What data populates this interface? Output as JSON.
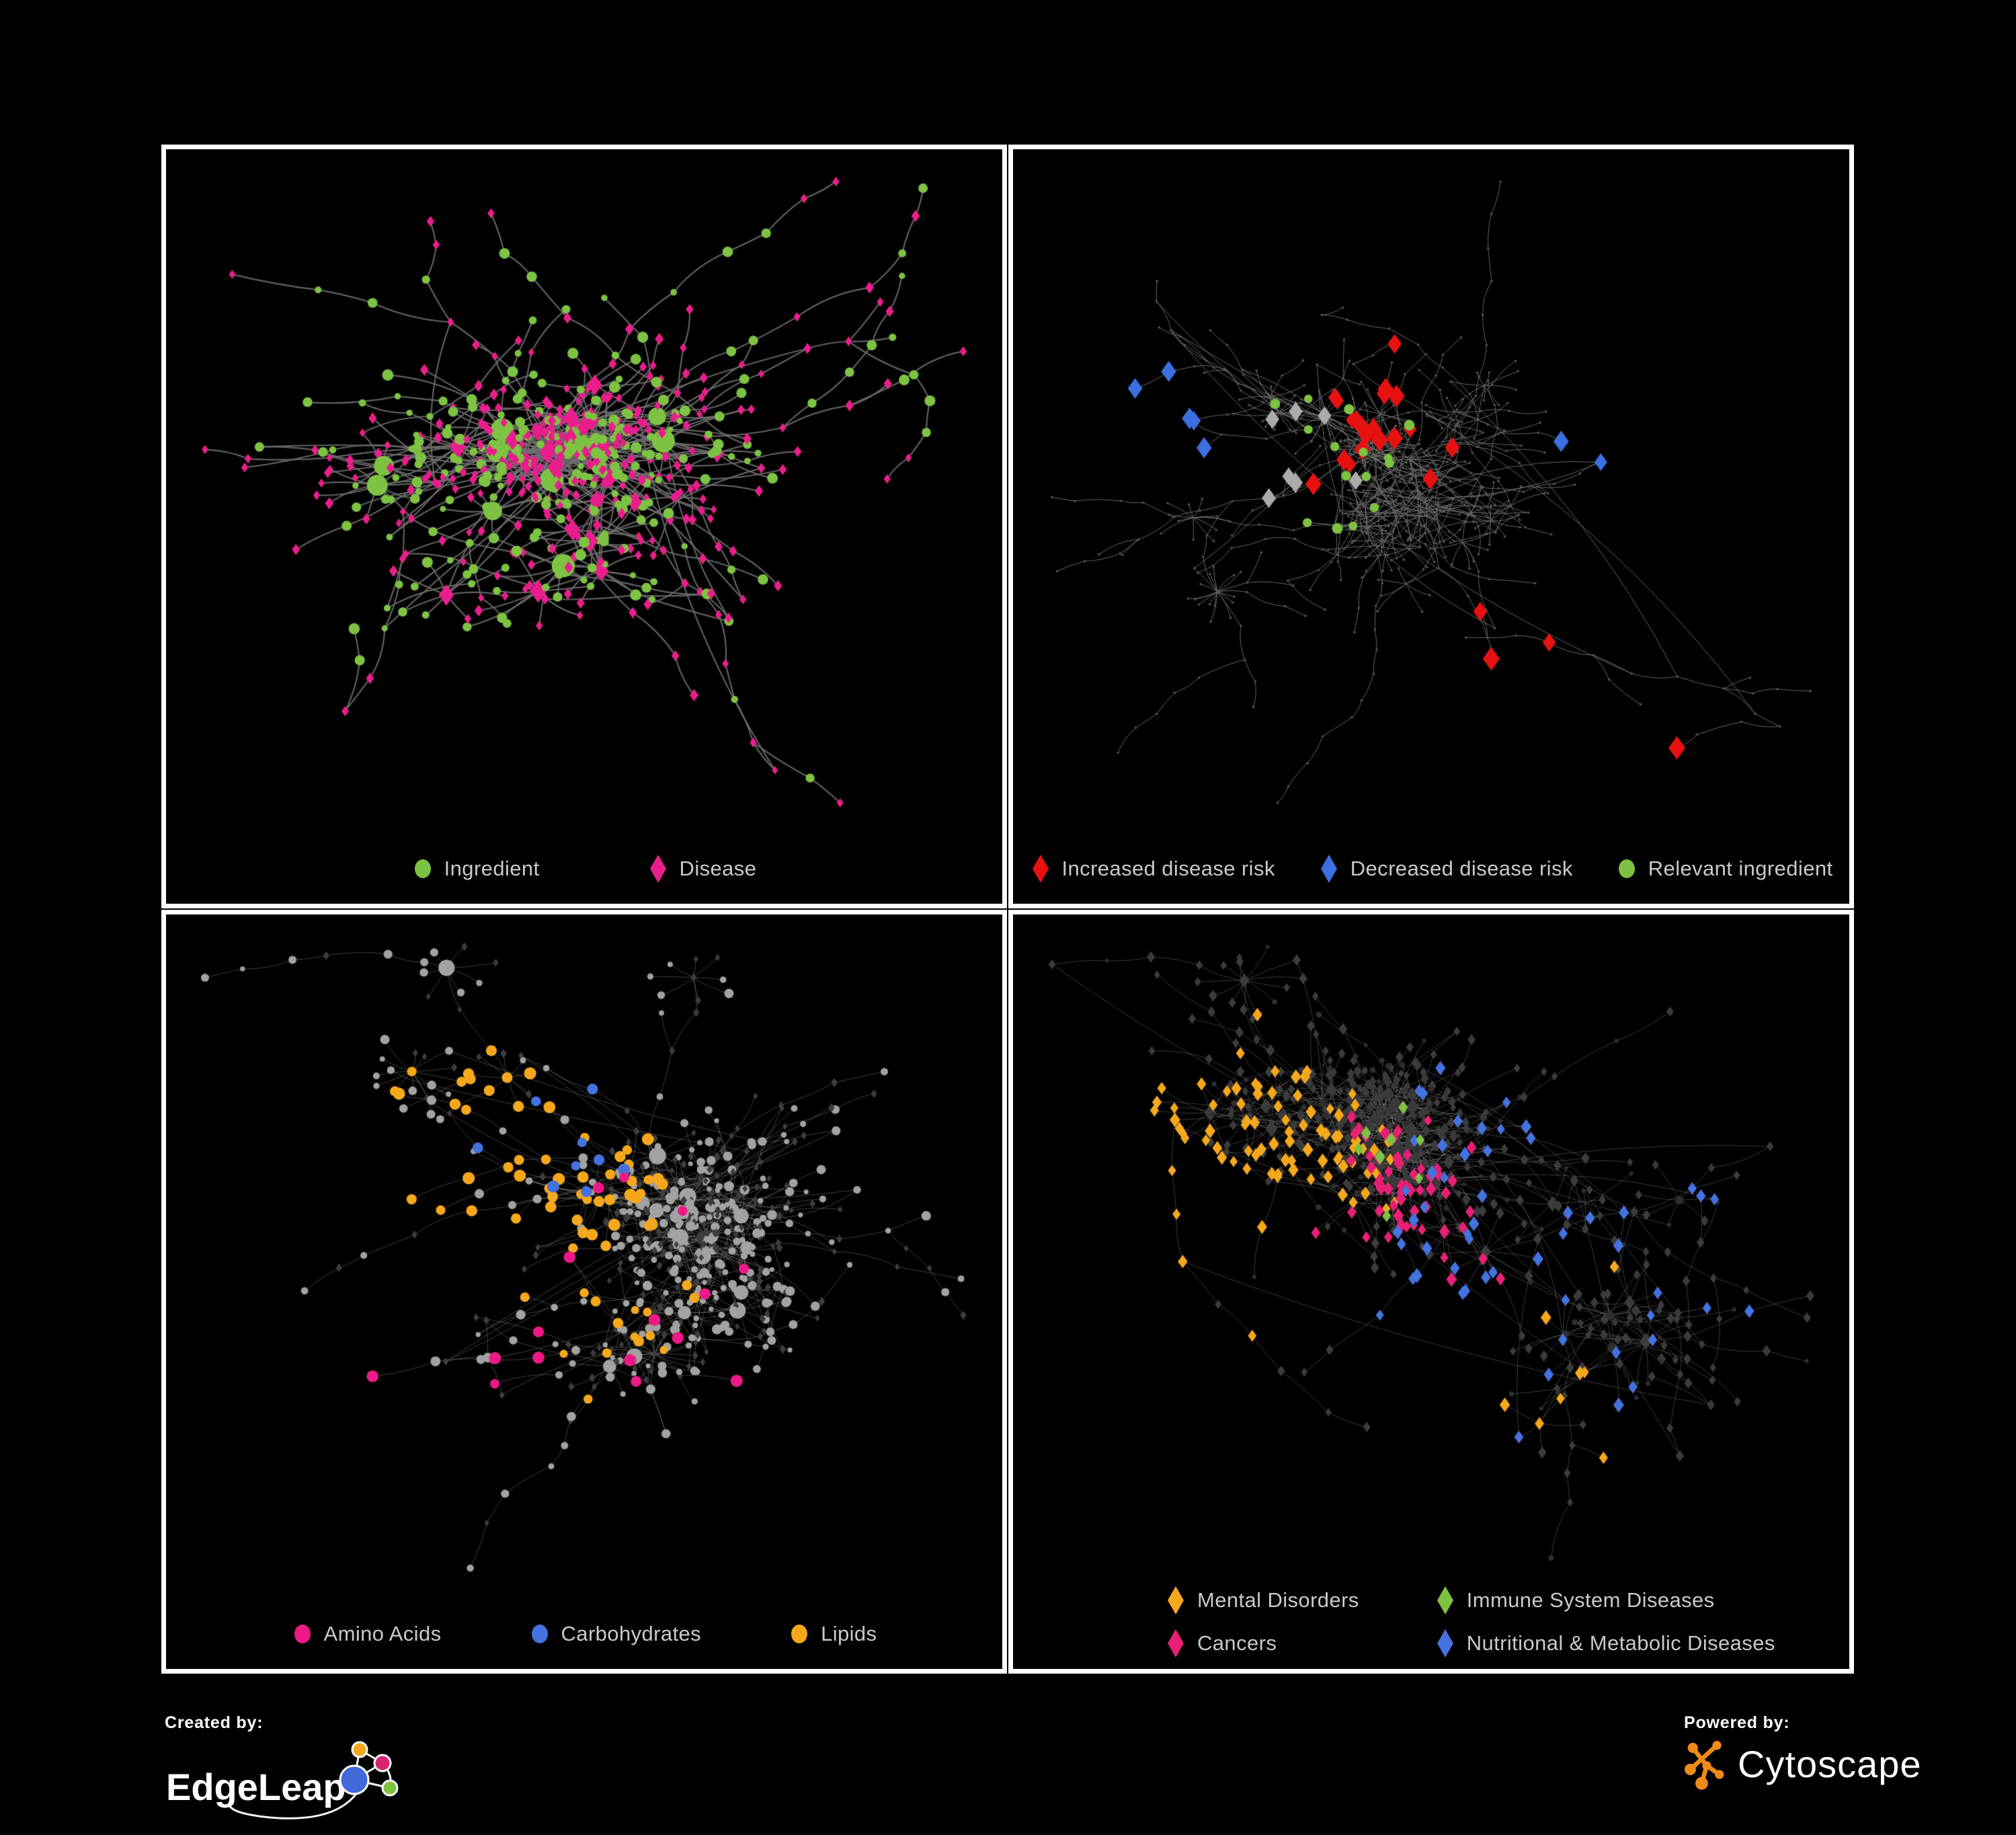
{
  "page": {
    "background": "#000000",
    "panel_border": "#ffffff"
  },
  "panels": [
    {
      "id": "ingredient-disease",
      "position": "top-left",
      "legend": [
        {
          "label": "Ingredient",
          "shape": "circle",
          "color": "#7DC242"
        },
        {
          "label": "Disease",
          "shape": "diamond",
          "color": "#E91E8C"
        }
      ],
      "network": {
        "seed": 11,
        "nodes": 620,
        "burst_prob": 0.1,
        "chain_prob": 0.55,
        "extra_edges": 22,
        "edge": {
          "color": "#6E6E6E",
          "width": 2.2,
          "alpha": 0.88,
          "curve": 0.14
        },
        "base": {
          "style": "ingredient-disease",
          "circle_color": "#7DC242",
          "diamond_color": "#E91E8C",
          "circle_prob": 0.45,
          "circle_r": [
            4.5,
            8.5
          ],
          "diamond_r": [
            4.5,
            6.5
          ],
          "hub_extra": 9
        },
        "highlights": []
      }
    },
    {
      "id": "disease-risk",
      "position": "top-right",
      "legend": [
        {
          "label": "Increased disease risk",
          "shape": "diamond",
          "color": "#E81111"
        },
        {
          "label": "Decreased disease risk",
          "shape": "diamond",
          "color": "#3D6FE0"
        },
        {
          "label": "Relevant ingredient",
          "shape": "circle",
          "color": "#7DC242"
        }
      ],
      "network": {
        "seed": 23,
        "nodes": 680,
        "burst_prob": 0.09,
        "chain_prob": 0.62,
        "extra_edges": 28,
        "edge": {
          "color": "#7F7F7F",
          "width": 1.0,
          "alpha": 0.8,
          "curve": 0.16
        },
        "base": {
          "style": "dots",
          "dot_color": "#555555",
          "dot_r": 1.8
        },
        "highlights": [
          {
            "shape": "diamond",
            "color": "#E81111",
            "size": 11,
            "count": 20,
            "focus": [
              0.42,
              0.33
            ],
            "spread": 0.5
          },
          {
            "shape": "diamond",
            "color": "#E81111",
            "size": 11,
            "count": 4,
            "focus": [
              0.62,
              0.74
            ],
            "spread": 0.22
          },
          {
            "shape": "diamond",
            "color": "#3D6FE0",
            "size": 11,
            "count": 5,
            "focus": [
              0.2,
              0.36
            ],
            "spread": 0.12
          },
          {
            "shape": "diamond",
            "color": "#3D6FE0",
            "size": 11,
            "count": 2,
            "focus": [
              0.87,
              0.26
            ],
            "spread": 0.04
          },
          {
            "shape": "diamond",
            "color": "#ABABAB",
            "size": 10,
            "count": 7,
            "focus": [
              0.33,
              0.42
            ],
            "spread": 0.42
          },
          {
            "shape": "circle",
            "color": "#7DC242",
            "size": 7,
            "count": 15,
            "focus": [
              0.38,
              0.38
            ],
            "spread": 0.6
          }
        ]
      }
    },
    {
      "id": "nutrient-classes",
      "position": "bottom-left",
      "legend": [
        {
          "label": "Amino Acids",
          "shape": "circle",
          "color": "#ED1A86"
        },
        {
          "label": "Carbohydrates",
          "shape": "circle",
          "color": "#4472DE"
        },
        {
          "label": "Lipids",
          "shape": "circle",
          "color": "#F5A81C"
        }
      ],
      "network": {
        "seed": 37,
        "nodes": 650,
        "burst_prob": 0.11,
        "chain_prob": 0.52,
        "extra_edges": 40,
        "edge": {
          "color": "#9C9C9C",
          "width": 0.9,
          "alpha": 0.45,
          "curve": 0.12
        },
        "base": {
          "style": "grey-mix",
          "circle_color": "#A2A2A2",
          "diamond_color": "#3D3D3D",
          "circle_prob": 0.52,
          "circle_r": [
            3.5,
            7.5
          ],
          "diamond_r": [
            3.5,
            5
          ],
          "hub_extra": 6
        },
        "highlights": [
          {
            "shape": "circle",
            "color": "#F5A81C",
            "size": 8,
            "count": 55,
            "focus": [
              0.42,
              0.32
            ],
            "spread": 0.2
          },
          {
            "shape": "circle",
            "color": "#F5A81C",
            "size": 7,
            "count": 14,
            "focus": [
              0.45,
              0.6
            ],
            "spread": 1.4
          },
          {
            "shape": "circle",
            "color": "#4472DE",
            "size": 8,
            "count": 9,
            "focus": [
              0.46,
              0.27
            ],
            "spread": 0.12
          },
          {
            "shape": "circle",
            "color": "#ED1A86",
            "size": 8,
            "count": 16,
            "focus": [
              0.4,
              0.6
            ],
            "spread": 1.6
          }
        ]
      }
    },
    {
      "id": "disease-classes",
      "position": "bottom-right",
      "legend": [
        {
          "label": "Mental Disorders",
          "shape": "diamond",
          "color": "#F5A81C"
        },
        {
          "label": "Immune System Diseases",
          "shape": "diamond",
          "color": "#7DC242"
        },
        {
          "label": "Cancers",
          "shape": "diamond",
          "color": "#E82074"
        },
        {
          "label": "Nutritional & Metabolic Diseases",
          "shape": "diamond",
          "color": "#4472DE"
        }
      ],
      "network": {
        "seed": 53,
        "nodes": 720,
        "burst_prob": 0.12,
        "chain_prob": 0.5,
        "extra_edges": 45,
        "edge": {
          "color": "#ABABAB",
          "width": 0.9,
          "alpha": 0.38,
          "curve": 0.12
        },
        "base": {
          "style": "dark-mix",
          "diamond_color": "#3B3B3B",
          "circle_color": "#2E2E2E",
          "diamond_prob": 0.8,
          "diamond_r": [
            4.5,
            6.5
          ],
          "circle_r": [
            2.5,
            4.5
          ],
          "hub_extra": 3
        },
        "highlights": [
          {
            "shape": "diamond",
            "color": "#F5A81C",
            "size": 7,
            "count": 85,
            "focus": [
              0.18,
              0.38
            ],
            "spread": 0.2
          },
          {
            "shape": "diamond",
            "color": "#F5A81C",
            "size": 7,
            "count": 8,
            "focus": [
              0.6,
              0.7
            ],
            "spread": 1.5
          },
          {
            "shape": "diamond",
            "color": "#E82074",
            "size": 7,
            "count": 55,
            "focus": [
              0.46,
              0.42
            ],
            "spread": 0.25
          },
          {
            "shape": "diamond",
            "color": "#4472DE",
            "size": 7,
            "count": 40,
            "focus": [
              0.72,
              0.4
            ],
            "spread": 0.8
          },
          {
            "shape": "diamond",
            "color": "#4472DE",
            "size": 7,
            "count": 14,
            "focus": [
              0.56,
              0.5
            ],
            "spread": 0.12
          },
          {
            "shape": "diamond",
            "color": "#7DC242",
            "size": 7,
            "count": 8,
            "focus": [
              0.45,
              0.38
            ],
            "spread": 0.7
          }
        ]
      }
    }
  ],
  "footer": {
    "created_by": {
      "label": "Created by:",
      "brand": "EdgeLeap",
      "node_colors": {
        "orange": "#F5A81C",
        "pink": "#D6246E",
        "blue": "#4169D8",
        "green": "#7DC242"
      },
      "line_color": "#ffffff"
    },
    "powered_by": {
      "label": "Powered by:",
      "brand": "Cytoscape",
      "logo_color": "#EE8B18"
    }
  }
}
